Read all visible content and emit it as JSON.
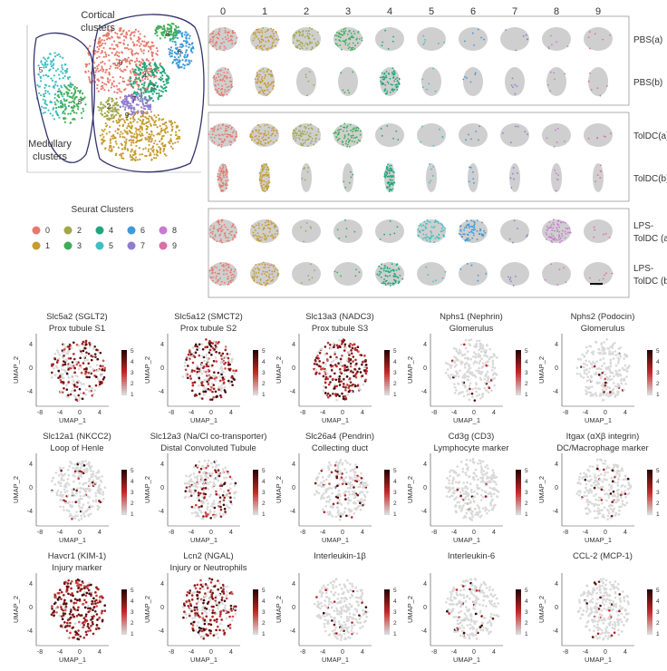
{
  "umap_panel": {
    "cortical_label": [
      "Cortical",
      "clusters"
    ],
    "medullary_label": [
      "Medullary",
      "clusters"
    ],
    "cluster_ids_on_map": [
      "0",
      "1",
      "2",
      "3",
      "4",
      "5",
      "6",
      "7",
      "8",
      "9"
    ]
  },
  "legend": {
    "title": "Seurat Clusters",
    "items": [
      {
        "id": "0",
        "color": "#e8786b"
      },
      {
        "id": "1",
        "color": "#c79b2c"
      },
      {
        "id": "2",
        "color": "#a2a84a"
      },
      {
        "id": "3",
        "color": "#3fae56"
      },
      {
        "id": "4",
        "color": "#1fa67a"
      },
      {
        "id": "5",
        "color": "#3fbfc2"
      },
      {
        "id": "6",
        "color": "#3f9ad8"
      },
      {
        "id": "7",
        "color": "#8f7cd0"
      },
      {
        "id": "8",
        "color": "#c77ad0"
      },
      {
        "id": "9",
        "color": "#d96fa6"
      }
    ]
  },
  "spatial": {
    "column_headers": [
      "0",
      "1",
      "2",
      "3",
      "4",
      "5",
      "6",
      "7",
      "8",
      "9"
    ],
    "groups": [
      {
        "rows": [
          {
            "label": [
              "PBS(a)"
            ]
          },
          {
            "label": [
              "PBS(b)"
            ]
          }
        ]
      },
      {
        "rows": [
          {
            "label": [
              "TolDC(a)"
            ]
          },
          {
            "label": [
              "TolDC(b)"
            ]
          }
        ]
      },
      {
        "rows": [
          {
            "label": [
              "LPS-",
              "TolDC (a)"
            ]
          },
          {
            "label": [
              "LPS-",
              "TolDC (b)"
            ]
          }
        ]
      }
    ]
  },
  "feature_plots": {
    "xlabel": "UMAP_1",
    "ylabel": "UMAP_2",
    "x_ticks": [
      "-8",
      "-4",
      "0",
      "4"
    ],
    "y_ticks": [
      "4",
      "0",
      "-4"
    ],
    "colorbar_ticks": [
      "5",
      "4",
      "3",
      "2",
      "1"
    ],
    "colors": {
      "low": "#d9d9d9",
      "high": "#2b0505",
      "mid": "#c62828"
    },
    "panels": [
      {
        "title": [
          "Slc5a2 (SGLT2)",
          "Prox tubule S1"
        ],
        "expr": 0.55
      },
      {
        "title": [
          "Slc5a12 (SMCT2)",
          "Prox tubule S2"
        ],
        "expr": 0.55
      },
      {
        "title": [
          "Slc13a3 (NADC3)",
          "Prox tubule S3"
        ],
        "expr": 0.8
      },
      {
        "title": [
          "Nphs1 (Nephrin)",
          "Glomerulus"
        ],
        "expr": 0.05
      },
      {
        "title": [
          "Nphs2 (Podocin)",
          "Glomerulus"
        ],
        "expr": 0.06
      },
      {
        "title": [
          "Slc12a1 (NKCC2)",
          "Loop of Henle"
        ],
        "expr": 0.1
      },
      {
        "title": [
          "Slc12a3 (Na/Cl co-transporter)",
          "Distal Convoluted Tubule"
        ],
        "expr": 0.35
      },
      {
        "title": [
          "Slc26a4 (Pendrin)",
          "Collecting duct"
        ],
        "expr": 0.15
      },
      {
        "title": [
          "Cd3g (CD3)",
          "Lymphocyte marker"
        ],
        "expr": 0.03
      },
      {
        "title": [
          "Itgax (αXβ integrin)",
          "DC/Macrophage marker"
        ],
        "expr": 0.06
      },
      {
        "title": [
          "Havcr1 (KIM-1)",
          "Injury marker"
        ],
        "expr": 0.9
      },
      {
        "title": [
          "Lcn2 (NGAL)",
          "Injury or Neutrophils"
        ],
        "expr": 0.6
      },
      {
        "title": [
          "Interleukin-1β"
        ],
        "expr": 0.08
      },
      {
        "title": [
          "Interleukin-6"
        ],
        "expr": 0.12
      },
      {
        "title": [
          "CCL-2 (MCP-1)"
        ],
        "expr": 0.1
      }
    ]
  }
}
